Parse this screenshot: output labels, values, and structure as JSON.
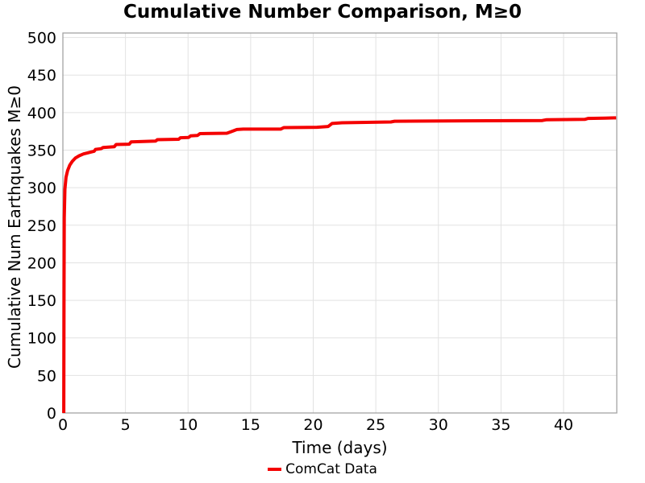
{
  "chart_data": {
    "type": "line",
    "title": "Cumulative Number Comparison, M≥0",
    "xlabel": "Time (days)",
    "ylabel": "Cumulative Num Earthquakes M≥0",
    "xlim": [
      0,
      44.25
    ],
    "ylim": [
      0,
      506
    ],
    "xticks": [
      0,
      5,
      10,
      15,
      20,
      25,
      30,
      35,
      40
    ],
    "yticks": [
      0,
      50,
      100,
      150,
      200,
      250,
      300,
      350,
      400,
      450,
      500
    ],
    "grid": true,
    "legend_position": "bottom-center",
    "series": [
      {
        "name": "ComCat Data",
        "color": "#f40000",
        "points": [
          [
            0.07,
            0
          ],
          [
            0.09,
            160
          ],
          [
            0.11,
            260
          ],
          [
            0.16,
            298
          ],
          [
            0.25,
            314
          ],
          [
            0.38,
            323
          ],
          [
            0.55,
            330
          ],
          [
            0.75,
            335
          ],
          [
            1.0,
            339.5
          ],
          [
            1.3,
            342.5
          ],
          [
            1.65,
            345
          ],
          [
            2.0,
            346.5
          ],
          [
            2.35,
            348
          ],
          [
            2.5,
            348.5
          ],
          [
            2.6,
            351
          ],
          [
            3.05,
            352
          ],
          [
            3.2,
            353.5
          ],
          [
            4.1,
            354.5
          ],
          [
            4.25,
            357.5
          ],
          [
            5.3,
            358
          ],
          [
            5.45,
            361
          ],
          [
            7.4,
            362
          ],
          [
            7.55,
            364
          ],
          [
            9.25,
            364.5
          ],
          [
            9.4,
            366.5
          ],
          [
            10.05,
            367
          ],
          [
            10.2,
            369
          ],
          [
            10.75,
            369.5
          ],
          [
            10.95,
            372
          ],
          [
            13.1,
            372.5
          ],
          [
            13.5,
            375
          ],
          [
            13.9,
            377.5
          ],
          [
            14.4,
            378
          ],
          [
            17.4,
            378
          ],
          [
            17.65,
            380
          ],
          [
            20.3,
            380.5
          ],
          [
            21.2,
            381.5
          ],
          [
            21.5,
            385.5
          ],
          [
            22.3,
            386.5
          ],
          [
            26.2,
            387.5
          ],
          [
            26.5,
            388.5
          ],
          [
            32.0,
            389
          ],
          [
            38.3,
            389.5
          ],
          [
            38.65,
            390.5
          ],
          [
            41.7,
            391
          ],
          [
            41.95,
            392.3
          ],
          [
            43.3,
            392.6
          ],
          [
            44.2,
            393
          ]
        ]
      }
    ]
  },
  "colors": {
    "line_red": "#f40000",
    "grid": "#e2e2e2",
    "border": "#a3a3a3",
    "text": "#000000",
    "background": "#ffffff"
  }
}
